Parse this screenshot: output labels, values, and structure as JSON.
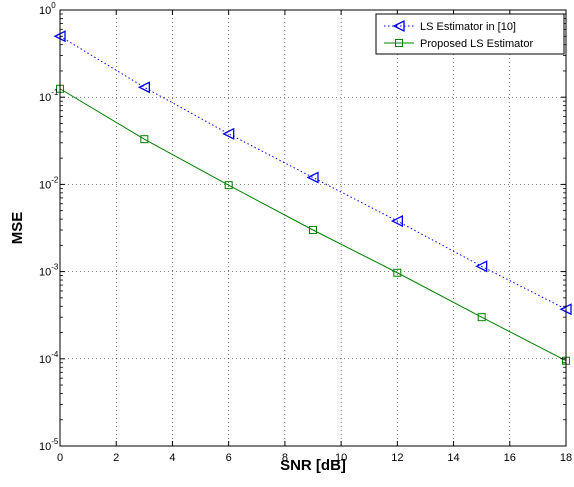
{
  "chart_data": {
    "type": "line",
    "title": "",
    "xlabel": "SNR [dB]",
    "ylabel": "MSE",
    "xlim": [
      0,
      18
    ],
    "ylim": [
      1e-05,
      1
    ],
    "yscale": "log",
    "grid": true,
    "legend_position": "top-right",
    "x_ticks": [
      "0",
      "2",
      "4",
      "6",
      "8",
      "10",
      "12",
      "14",
      "16",
      "18"
    ],
    "y_ticks": [
      {
        "base": "10",
        "exp": "-5"
      },
      {
        "base": "10",
        "exp": "-4"
      },
      {
        "base": "10",
        "exp": "-3"
      },
      {
        "base": "10",
        "exp": "-2"
      },
      {
        "base": "10",
        "exp": "-1"
      },
      {
        "base": "10",
        "exp": "0"
      }
    ],
    "x": [
      0,
      3,
      6,
      9,
      12,
      15,
      18
    ],
    "series": [
      {
        "name": "LS Estimator in [10]",
        "color": "#0000ff",
        "line": "dotted",
        "marker": "triangle-left",
        "values": [
          0.5,
          0.13,
          0.038,
          0.012,
          0.0038,
          0.00115,
          0.00037
        ]
      },
      {
        "name": "Proposed LS Estimator",
        "color": "#008000",
        "line": "solid",
        "marker": "square",
        "values": [
          0.125,
          0.033,
          0.0098,
          0.003,
          0.00097,
          0.0003,
          9.5e-05
        ]
      }
    ]
  }
}
